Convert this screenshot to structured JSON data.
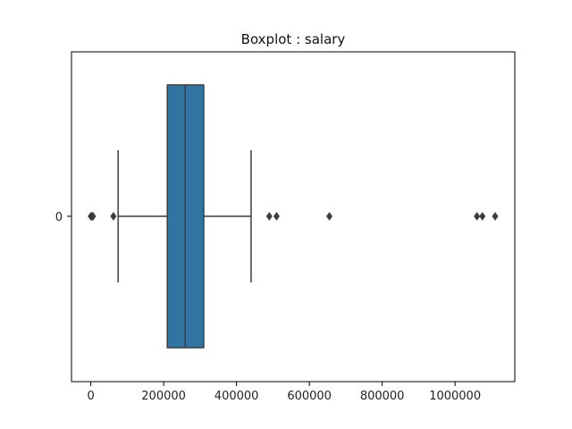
{
  "chart_data": {
    "type": "box",
    "title": "Boxplot : salary",
    "xlabel": "",
    "ylabel": "",
    "orientation": "horizontal",
    "categories": [
      "0"
    ],
    "xlim": [
      -53000,
      1164000
    ],
    "xticks": [
      0,
      200000,
      400000,
      600000,
      800000,
      1000000
    ],
    "xtick_labels": [
      "0",
      "200000",
      "400000",
      "600000",
      "800000",
      "1000000"
    ],
    "series": [
      {
        "category": "0",
        "whisker_low": 75000,
        "q1": 210000,
        "median": 259000,
        "q3": 310000,
        "whisker_high": 440000,
        "outliers": [
          0,
          2000,
          4000,
          6000,
          62000,
          490000,
          510000,
          655000,
          1060000,
          1075000,
          1110000
        ]
      }
    ],
    "colors": {
      "box": "#3274a1",
      "line": "#3d3d3d",
      "frame": "#000000"
    },
    "grid": false
  }
}
